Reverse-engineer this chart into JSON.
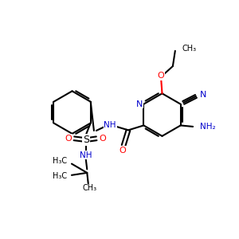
{
  "bg_color": "#FFFFFF",
  "bond_color": "#000000",
  "red": "#FF0000",
  "blue": "#0000CC",
  "bond_width": 1.5,
  "figsize": [
    3.0,
    3.0
  ],
  "dpi": 100,
  "xlim": [
    0,
    10
  ],
  "ylim": [
    0,
    10
  ]
}
